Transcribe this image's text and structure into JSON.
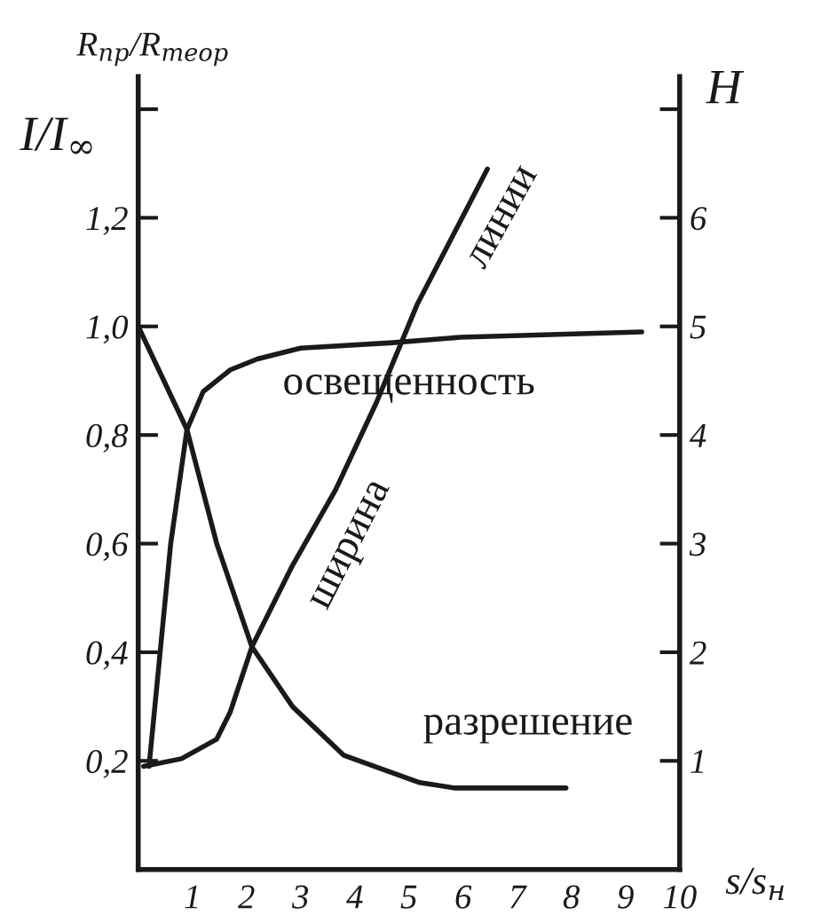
{
  "chart_data": {
    "type": "line",
    "xlabel": "s/s$_{н}$",
    "ylabel": "R$_{пр}$/R$_{теор}$",
    "y2label": "H",
    "annotations": [
      "I/I$_{∞}$"
    ],
    "xlim": [
      0,
      10
    ],
    "xticks": [
      1,
      2,
      3,
      4,
      5,
      6,
      7,
      8,
      9,
      10
    ],
    "ylim": [
      0,
      1.46
    ],
    "yticks": [
      {
        "value": 0.2,
        "label": "0,2"
      },
      {
        "value": 0.4,
        "label": "0,4"
      },
      {
        "value": 0.6,
        "label": "0,6"
      },
      {
        "value": 0.8,
        "label": "0,8"
      },
      {
        "value": 1.0,
        "label": "1,0"
      },
      {
        "value": 1.2,
        "label": "1,2"
      },
      {
        "value": 1.4,
        "label": null
      }
    ],
    "y2lim": [
      0,
      7.3
    ],
    "y2ticks": [
      1,
      2,
      3,
      4,
      5,
      6,
      {
        "value": 7,
        "label": null
      }
    ],
    "grid": false,
    "legend": false,
    "line_style": "solid",
    "series": [
      {
        "name": "освещенность",
        "color": "#1a1a1a",
        "x": [
          0.2,
          0.6,
          0.9,
          1.2,
          1.7,
          2.2,
          3.0,
          4.7,
          5.95,
          9.3
        ],
        "values": [
          0.19,
          0.6,
          0.81,
          0.88,
          0.92,
          0.94,
          0.96,
          0.97,
          0.98,
          0.99
        ]
      },
      {
        "name": "разрешение",
        "color": "#1a1a1a",
        "x": [
          0,
          0.9,
          1.45,
          2.1,
          2.85,
          3.8,
          5.2,
          5.85,
          7.9
        ],
        "values": [
          1.0,
          0.81,
          0.6,
          0.41,
          0.3,
          0.21,
          0.16,
          0.15,
          0.15
        ]
      },
      {
        "name": "ширина линии",
        "color": "#1a1a1a",
        "axis": "y2",
        "x": [
          0.1,
          0.8,
          1.45,
          1.7,
          2.1,
          2.85,
          3.65,
          4.4,
          5.15,
          6.45
        ],
        "values": [
          0.95,
          1.02,
          1.2,
          1.45,
          2.05,
          2.8,
          3.5,
          4.3,
          5.2,
          6.45
        ]
      }
    ]
  }
}
